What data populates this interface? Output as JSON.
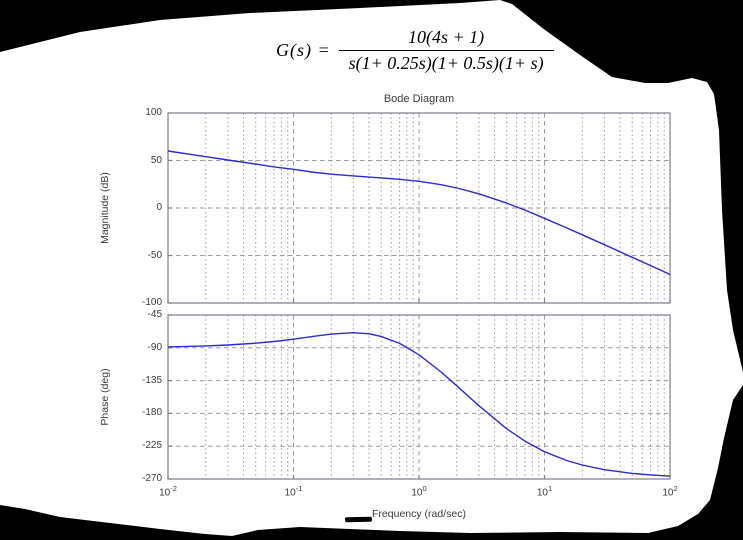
{
  "formula": {
    "lhs_equals": "G(s) =",
    "numerator": "10(4s + 1)",
    "denominator": "s(1+ 0.25s)(1+ 0.5s)(1+ s)"
  },
  "chart_data": {
    "type": "line",
    "title": "Bode Diagram",
    "xlabel": "Frequency  (rad/sec)",
    "x_scale": "log",
    "xlim": [
      0.01,
      100
    ],
    "xticks": [
      {
        "base": "10",
        "exp": "-2"
      },
      {
        "base": "10",
        "exp": "-1"
      },
      {
        "base": "10",
        "exp": "0"
      },
      {
        "base": "10",
        "exp": "1"
      },
      {
        "base": "10",
        "exp": "2"
      }
    ],
    "grid": true,
    "line_color": "#2b2bd2",
    "subplots": [
      {
        "name": "magnitude",
        "ylabel": "Magnitude (dB)",
        "ylim": [
          -100,
          100
        ],
        "yticks": [
          100,
          50,
          0,
          -50,
          -100
        ],
        "series": {
          "name": "magnitude-dB",
          "x": [
            0.01,
            0.015,
            0.02,
            0.03,
            0.05,
            0.07,
            0.1,
            0.15,
            0.2,
            0.3,
            0.5,
            0.7,
            1,
            1.5,
            2,
            3,
            5,
            7,
            10,
            15,
            20,
            30,
            50,
            70,
            100
          ],
          "y": [
            60,
            56.5,
            54,
            50.5,
            46.2,
            43.3,
            40.7,
            37.4,
            35.6,
            33.8,
            31.7,
            30.2,
            28.1,
            24.5,
            21.1,
            15,
            5.2,
            -2.2,
            -10.8,
            -20.9,
            -28.2,
            -38.6,
            -51.9,
            -60.6,
            -69.9
          ]
        }
      },
      {
        "name": "phase",
        "ylabel": "Phase (deg)",
        "ylim": [
          -270,
          -45
        ],
        "yticks": [
          -45,
          -90,
          -135,
          -180,
          -225,
          -270
        ],
        "series": {
          "name": "phase-deg",
          "x": [
            0.01,
            0.02,
            0.03,
            0.05,
            0.07,
            0.1,
            0.15,
            0.2,
            0.3,
            0.4,
            0.5,
            0.7,
            1,
            1.5,
            2,
            3,
            5,
            7,
            10,
            15,
            20,
            30,
            50,
            70,
            100
          ],
          "y": [
            -88.7,
            -87.4,
            -86.2,
            -83.7,
            -81.4,
            -78.2,
            -74,
            -71.2,
            -69.3,
            -70.8,
            -74.3,
            -83.9,
            -99.6,
            -123.2,
            -142.1,
            -169.5,
            -201.1,
            -218.2,
            -232.6,
            -244.6,
            -250.8,
            -257.2,
            -262.3,
            -264.4,
            -266.1
          ]
        }
      }
    ]
  }
}
